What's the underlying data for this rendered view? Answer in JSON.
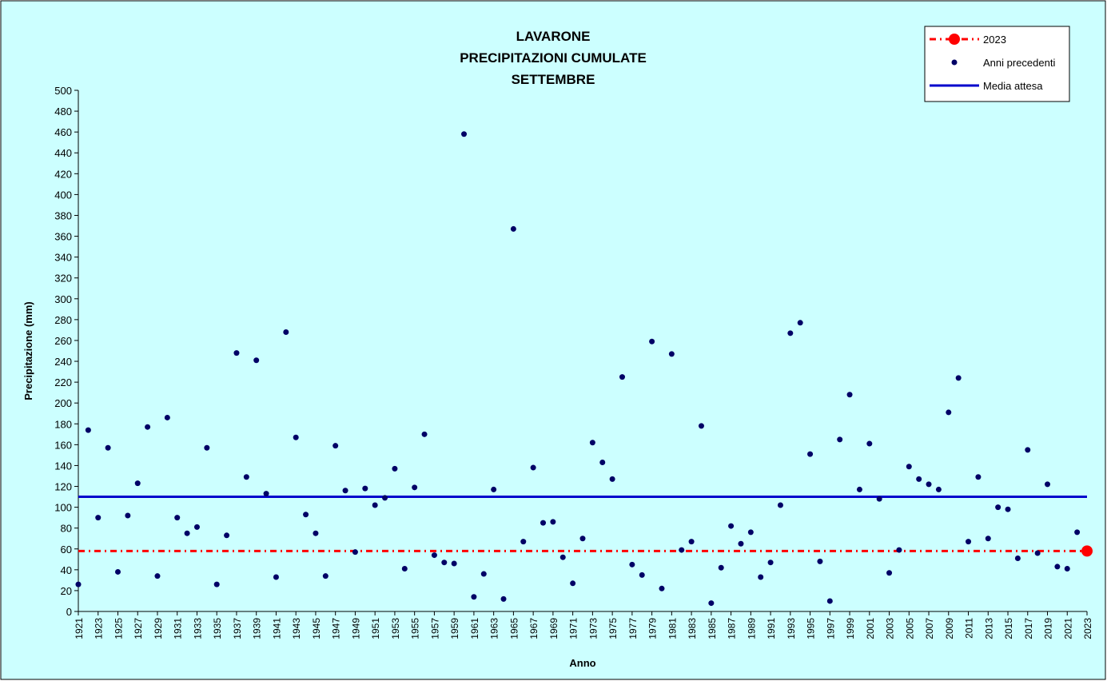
{
  "chart_data": {
    "type": "scatter",
    "title": [
      "LAVARONE",
      "PRECIPITAZIONI CUMULATE",
      "SETTEMBRE"
    ],
    "x_label": "Anno",
    "y_label": "Precipitazione (mm)",
    "xlim": [
      1921,
      2023
    ],
    "ylim": [
      0,
      500
    ],
    "yticks": [
      0,
      20,
      40,
      60,
      80,
      100,
      120,
      140,
      160,
      180,
      200,
      220,
      240,
      260,
      280,
      300,
      320,
      340,
      360,
      380,
      400,
      420,
      440,
      460,
      480,
      500
    ],
    "xticks": [
      1921,
      1923,
      1925,
      1927,
      1929,
      1931,
      1933,
      1935,
      1937,
      1939,
      1941,
      1943,
      1945,
      1947,
      1949,
      1951,
      1953,
      1955,
      1957,
      1959,
      1961,
      1963,
      1965,
      1967,
      1969,
      1971,
      1973,
      1975,
      1977,
      1979,
      1981,
      1983,
      1985,
      1987,
      1989,
      1991,
      1993,
      1995,
      1997,
      1999,
      2001,
      2003,
      2005,
      2007,
      2009,
      2011,
      2013,
      2015,
      2017,
      2019,
      2021,
      2023
    ],
    "legend": "top-right",
    "series": [
      {
        "name": "Anni precedenti",
        "color": "#000066",
        "x": [
          1921,
          1922,
          1923,
          1924,
          1925,
          1926,
          1927,
          1928,
          1929,
          1930,
          1931,
          1932,
          1933,
          1934,
          1935,
          1936,
          1937,
          1938,
          1939,
          1940,
          1941,
          1942,
          1943,
          1944,
          1945,
          1946,
          1947,
          1948,
          1949,
          1950,
          1951,
          1952,
          1953,
          1954,
          1955,
          1956,
          1957,
          1958,
          1959,
          1960,
          1961,
          1962,
          1963,
          1964,
          1965,
          1966,
          1967,
          1968,
          1969,
          1970,
          1971,
          1972,
          1973,
          1974,
          1975,
          1976,
          1977,
          1978,
          1979,
          1980,
          1981,
          1982,
          1983,
          1984,
          1985,
          1986,
          1987,
          1988,
          1989,
          1990,
          1991,
          1992,
          1993,
          1994,
          1995,
          1996,
          1997,
          1998,
          1999,
          2000,
          2001,
          2002,
          2003,
          2004,
          2005,
          2006,
          2007,
          2008,
          2009,
          2010,
          2011,
          2012,
          2013,
          2014,
          2015,
          2016,
          2017,
          2018,
          2019,
          2020,
          2021,
          2022
        ],
        "values": [
          26,
          174,
          90,
          157,
          38,
          92,
          123,
          177,
          34,
          186,
          90,
          75,
          81,
          157,
          26,
          73,
          248,
          129,
          241,
          113,
          33,
          268,
          167,
          93,
          75,
          34,
          159,
          116,
          57,
          118,
          102,
          109,
          137,
          41,
          119,
          170,
          54,
          47,
          46,
          458,
          14,
          36,
          117,
          12,
          367,
          67,
          138,
          85,
          86,
          52,
          27,
          70,
          162,
          143,
          127,
          225,
          45,
          35,
          259,
          22,
          247,
          59,
          67,
          178,
          8,
          42,
          82,
          65,
          76,
          33,
          47,
          102,
          267,
          277,
          151,
          48,
          10,
          165,
          208,
          117,
          161,
          108,
          37,
          59,
          139,
          127,
          122,
          117,
          191,
          224,
          67,
          129,
          70,
          100,
          98,
          51,
          155,
          56,
          122,
          43,
          41,
          76
        ]
      },
      {
        "name": "2023",
        "color": "#ff0000",
        "x": [
          2023
        ],
        "values": [
          58
        ]
      },
      {
        "name": "Media attesa",
        "color": "#0000cc",
        "value": 110
      }
    ]
  }
}
